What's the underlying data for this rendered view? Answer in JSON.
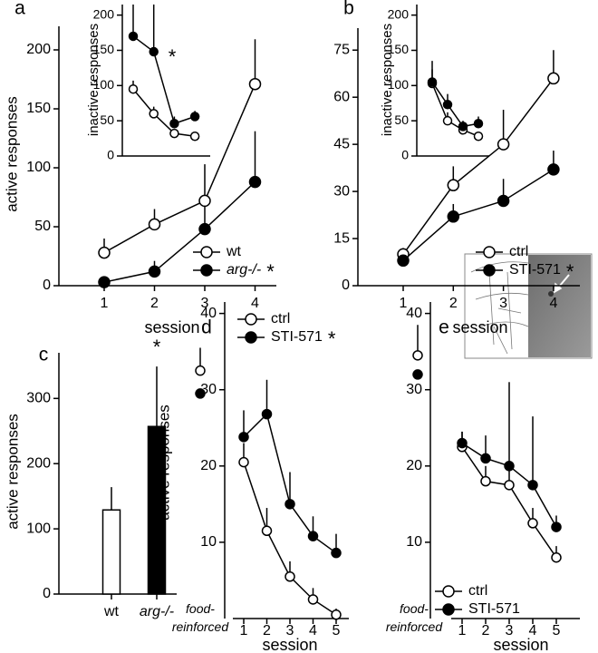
{
  "chart_data": [
    {
      "type": "line",
      "panel": "a",
      "xlabel": "session",
      "ylabel": "active responses",
      "categories": [
        "1",
        "2",
        "3",
        "4"
      ],
      "ylim": [
        0,
        220
      ],
      "yticks": [
        0,
        50,
        100,
        150,
        200
      ],
      "series": [
        {
          "name": "wt",
          "color": "#000000",
          "fill": "#ffffff",
          "values": [
            28,
            52,
            72,
            171
          ],
          "errors": [
            12,
            13,
            31,
            38
          ]
        },
        {
          "name": "arg-/-",
          "italic": true,
          "note": "*",
          "color": "#000000",
          "fill": "#000000",
          "values": [
            3,
            12,
            48,
            88
          ],
          "errors": [
            2,
            9,
            20,
            43
          ]
        }
      ]
    },
    {
      "type": "line",
      "ylabel": "inactive responses",
      "annotation": "*",
      "categories": [
        null,
        null,
        null,
        null
      ],
      "ylim": [
        0,
        215
      ],
      "yticks": [
        0,
        50,
        100,
        150,
        200
      ],
      "series": [
        {
          "name": "wt",
          "color": "#000000",
          "fill": "#ffffff",
          "values": [
            95,
            60,
            32,
            28
          ],
          "errors": [
            12,
            10,
            4,
            2
          ]
        },
        {
          "name": "arg-/-",
          "color": "#000000",
          "fill": "#000000",
          "values": [
            170,
            148,
            46,
            56
          ],
          "errors": [
            45,
            67,
            10,
            8
          ]
        }
      ]
    },
    {
      "type": "line",
      "panel": "b",
      "xlabel": "session",
      "categories": [
        "1",
        "2",
        "3",
        "4"
      ],
      "ylim": [
        0,
        82
      ],
      "yticks": [
        0,
        15,
        30,
        45,
        60,
        75
      ],
      "series": [
        {
          "name": "ctrl",
          "color": "#000000",
          "fill": "#ffffff",
          "values": [
            10,
            32,
            45,
            66
          ],
          "errors": [
            2,
            6,
            11,
            9
          ]
        },
        {
          "name": "STI-571",
          "note": "*",
          "color": "#000000",
          "fill": "#000000",
          "values": [
            8,
            22,
            27,
            37
          ],
          "errors": [
            1,
            4,
            7,
            6
          ]
        }
      ]
    },
    {
      "type": "line",
      "ylabel": "inactive responses",
      "categories": [
        null,
        null,
        null,
        null
      ],
      "ylim": [
        0,
        215
      ],
      "yticks": [
        0,
        50,
        100,
        150,
        200
      ],
      "series": [
        {
          "name": "ctrl",
          "color": "#000000",
          "fill": "#ffffff",
          "values": [
            103,
            50,
            37,
            28
          ],
          "errors": [
            20,
            12,
            5,
            3
          ]
        },
        {
          "name": "STI-571",
          "color": "#000000",
          "fill": "#000000",
          "values": [
            105,
            73,
            42,
            46
          ],
          "errors": [
            30,
            15,
            8,
            10
          ]
        }
      ]
    },
    {
      "type": "bar",
      "panel": "c",
      "ylabel": "active responses",
      "annotation": "*",
      "categories": [
        "wt",
        "arg-/-"
      ],
      "italic_categories": [
        false,
        true
      ],
      "values": [
        129,
        257
      ],
      "errors": [
        35,
        92
      ],
      "colors": [
        "#ffffff",
        "#000000"
      ],
      "ylim": [
        0,
        370
      ],
      "yticks": [
        0,
        100,
        200,
        300
      ]
    },
    {
      "type": "line",
      "panel": "d",
      "xlabel": "session",
      "ylabel": "active responses",
      "reference_label": "food-reinforced",
      "categories": [
        "1",
        "2",
        "3",
        "4",
        "5"
      ],
      "ylim": [
        0,
        41.5
      ],
      "yticks": [
        10,
        20,
        30,
        40
      ],
      "series": [
        {
          "name": "ctrl",
          "color": "#000000",
          "fill": "#ffffff",
          "reference_value": 32.5,
          "reference_error": 3,
          "values": [
            20.5,
            11.5,
            5.5,
            2.5,
            0.5
          ],
          "errors": [
            2.5,
            3,
            2,
            1.5,
            0.8
          ]
        },
        {
          "name": "STI-571",
          "note": "*",
          "color": "#000000",
          "fill": "#000000",
          "reference_value": 29.5,
          "reference_error": null,
          "values": [
            23.8,
            26.8,
            15,
            10.8,
            8.6
          ],
          "errors": [
            3.5,
            4.5,
            4.2,
            2.6,
            2.5
          ]
        }
      ]
    },
    {
      "type": "line",
      "panel": "e",
      "xlabel": "session",
      "reference_label": "food-reinforced",
      "categories": [
        "1",
        "2",
        "3",
        "4",
        "5"
      ],
      "ylim": [
        0,
        41.5
      ],
      "yticks": [
        10,
        20,
        30,
        40
      ],
      "series": [
        {
          "name": "ctrl",
          "color": "#000000",
          "fill": "#ffffff",
          "reference_value": 34.5,
          "reference_error": 4,
          "values": [
            22.5,
            18,
            17.5,
            12.5,
            8
          ],
          "errors": [
            2,
            2,
            2,
            2,
            1.5
          ]
        },
        {
          "name": "STI-571",
          "color": "#000000",
          "fill": "#000000",
          "reference_value": 32,
          "reference_error": null,
          "values": [
            23,
            21,
            20,
            17.5,
            12
          ],
          "errors": [
            1.5,
            3,
            11,
            9,
            1.5
          ]
        }
      ]
    }
  ]
}
